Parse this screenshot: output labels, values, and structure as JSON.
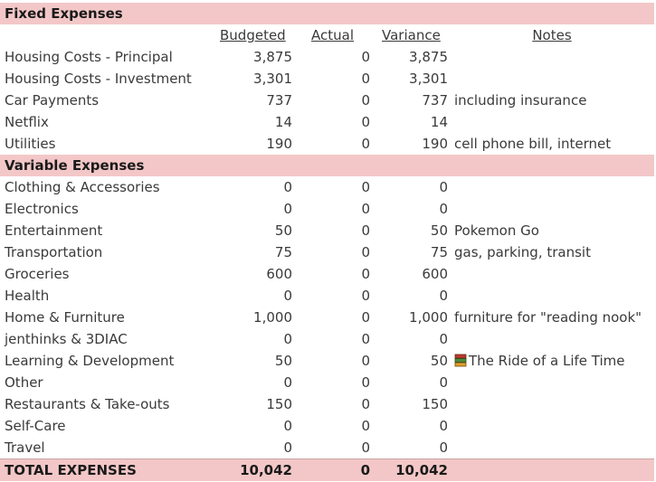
{
  "fixed_section": {
    "title": "Fixed Expenses"
  },
  "headers": {
    "budgeted": "Budgeted",
    "actual": "Actual",
    "variance": "Variance",
    "notes": "Notes"
  },
  "fixed_rows": [
    {
      "label": "Housing Costs - Principal",
      "budgeted": "3,875",
      "actual": "0",
      "variance": "3,875",
      "note": ""
    },
    {
      "label": "Housing Costs - Investment",
      "budgeted": "3,301",
      "actual": "0",
      "variance": "3,301",
      "note": ""
    },
    {
      "label": "Car Payments",
      "budgeted": "737",
      "actual": "0",
      "variance": "737",
      "note": "including insurance"
    },
    {
      "label": "Netflix",
      "budgeted": "14",
      "actual": "0",
      "variance": "14",
      "note": ""
    },
    {
      "label": "Utilities",
      "budgeted": "190",
      "actual": "0",
      "variance": "190",
      "note": "cell phone bill, internet"
    }
  ],
  "variable_section": {
    "title": "Variable Expenses"
  },
  "variable_rows": [
    {
      "label": "Clothing & Accessories",
      "budgeted": "0",
      "actual": "0",
      "variance": "0",
      "note": ""
    },
    {
      "label": "Electronics",
      "budgeted": "0",
      "actual": "0",
      "variance": "0",
      "note": ""
    },
    {
      "label": "Entertainment",
      "budgeted": "50",
      "actual": "0",
      "variance": "50",
      "note": "Pokemon Go"
    },
    {
      "label": "Transportation",
      "budgeted": "75",
      "actual": "0",
      "variance": "75",
      "note": "gas, parking, transit"
    },
    {
      "label": "Groceries",
      "budgeted": "600",
      "actual": "0",
      "variance": "600",
      "note": ""
    },
    {
      "label": "Health",
      "budgeted": "0",
      "actual": "0",
      "variance": "0",
      "note": ""
    },
    {
      "label": "Home & Furniture",
      "budgeted": "1,000",
      "actual": "0",
      "variance": "1,000",
      "note": "furniture for \"reading nook\""
    },
    {
      "label": "jenthinks & 3DIAC",
      "budgeted": "0",
      "actual": "0",
      "variance": "0",
      "note": ""
    },
    {
      "label": "Learning & Development",
      "budgeted": "50",
      "actual": "0",
      "variance": "50",
      "note": "The Ride of a Life Time",
      "note_icon": "books-icon"
    },
    {
      "label": "Other",
      "budgeted": "0",
      "actual": "0",
      "variance": "0",
      "note": ""
    },
    {
      "label": "Restaurants & Take-outs",
      "budgeted": "150",
      "actual": "0",
      "variance": "150",
      "note": ""
    },
    {
      "label": "Self-Care",
      "budgeted": "0",
      "actual": "0",
      "variance": "0",
      "note": ""
    },
    {
      "label": "Travel",
      "budgeted": "0",
      "actual": "0",
      "variance": "0",
      "note": ""
    }
  ],
  "total": {
    "label": "TOTAL EXPENSES",
    "budgeted": "10,042",
    "actual": "0",
    "variance": "10,042"
  },
  "colors": {
    "section_band": "#f3c7c7",
    "text": "#3a3a3a",
    "bold_text": "#1a1a1a"
  }
}
